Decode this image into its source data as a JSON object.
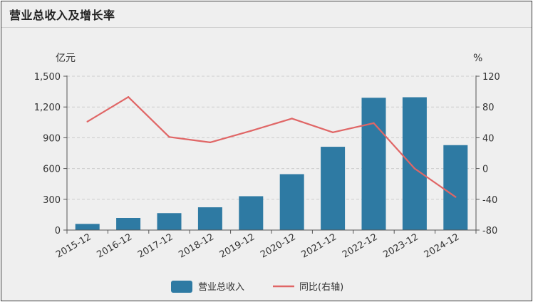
{
  "title": "营业总收入及增长率",
  "colors": {
    "bar": "#2e7aa3",
    "line": "#e06666",
    "axis": "#555555",
    "grid": "#cccccc",
    "background": "#efefef"
  },
  "chart_data": {
    "type": "bar",
    "title": "营业总收入及增长率",
    "categories": [
      "2015-12",
      "2016-12",
      "2017-12",
      "2018-12",
      "2019-12",
      "2020-12",
      "2021-12",
      "2022-12",
      "2023-12",
      "2024-12"
    ],
    "series": [
      {
        "name": "营业总收入",
        "type": "bar",
        "axis": "left",
        "values": [
          60,
          118,
          165,
          222,
          330,
          545,
          812,
          1290,
          1295,
          828
        ]
      },
      {
        "name": "同比(右轴)",
        "type": "line",
        "axis": "right",
        "values": [
          61,
          93,
          41,
          34,
          49,
          65,
          47,
          59,
          0,
          -37
        ]
      }
    ],
    "y_left": {
      "unit": "亿元",
      "ylim": [
        0,
        1500
      ],
      "ticks": [
        0,
        300,
        600,
        900,
        1200,
        1500
      ],
      "tick_labels": [
        "0",
        "300",
        "600",
        "900",
        "1,200",
        "1,500"
      ]
    },
    "y_right": {
      "unit": "%",
      "ylim": [
        -80,
        120
      ],
      "ticks": [
        -80,
        -40,
        0,
        40,
        80,
        120
      ],
      "tick_labels": [
        "-80",
        "-40",
        "0",
        "40",
        "80",
        "120"
      ]
    },
    "grid": true,
    "legend": "bottom-center"
  }
}
